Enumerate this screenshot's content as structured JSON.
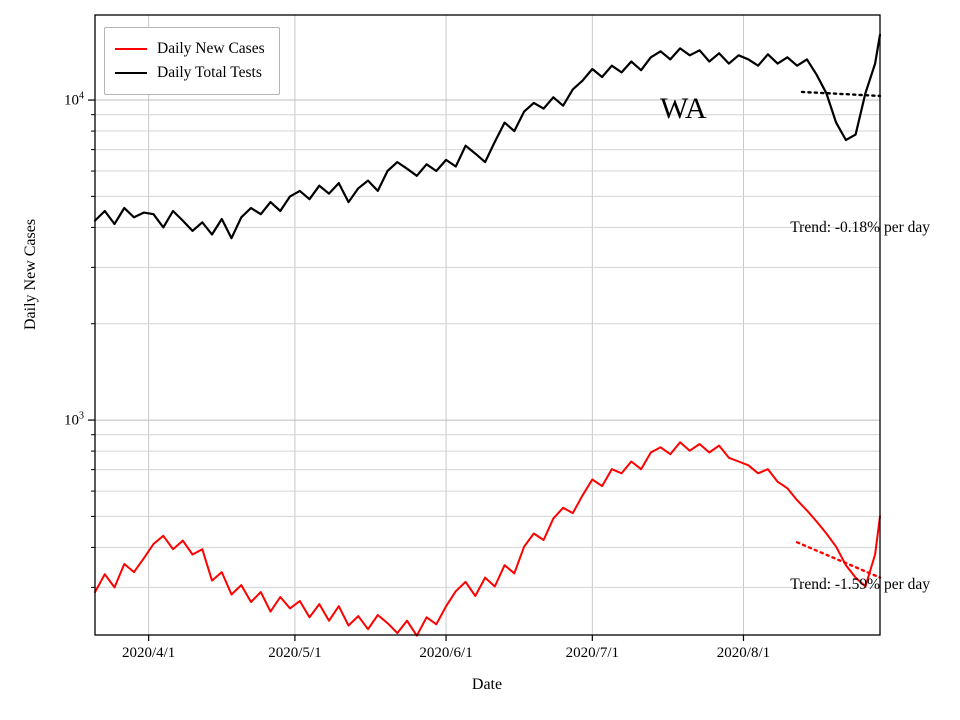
{
  "state_label": "WA",
  "axes": {
    "xlabel": "Date",
    "ylabel": "Daily New Cases"
  },
  "legend": [
    {
      "label": "Daily New Cases",
      "color": "#ff0000"
    },
    {
      "label": "Daily Total Tests",
      "color": "#000000"
    }
  ],
  "annotations": [
    {
      "text": "Trend: -0.18% per day",
      "series": "Daily Total Tests"
    },
    {
      "text": "Trend: -1.59% per day",
      "series": "Daily New Cases"
    }
  ],
  "chart_data": {
    "type": "line",
    "yscale": "log",
    "grid": true,
    "xlim_dates": [
      "2020-03-21",
      "2020-08-29"
    ],
    "ylim": [
      213,
      18440
    ],
    "xticks": [
      {
        "date": "2020-04-01",
        "label": "2020/4/1"
      },
      {
        "date": "2020-05-01",
        "label": "2020/5/1"
      },
      {
        "date": "2020-06-01",
        "label": "2020/6/1"
      },
      {
        "date": "2020-07-01",
        "label": "2020/7/1"
      },
      {
        "date": "2020-08-01",
        "label": "2020/8/1"
      }
    ],
    "yticks_major": [
      {
        "value": 1000,
        "base": 10,
        "exp": 3
      },
      {
        "value": 10000,
        "base": 10,
        "exp": 4
      }
    ],
    "x_dates": [
      "2020-03-21",
      "2020-03-23",
      "2020-03-25",
      "2020-03-27",
      "2020-03-29",
      "2020-03-31",
      "2020-04-02",
      "2020-04-04",
      "2020-04-06",
      "2020-04-08",
      "2020-04-10",
      "2020-04-12",
      "2020-04-14",
      "2020-04-16",
      "2020-04-18",
      "2020-04-20",
      "2020-04-22",
      "2020-04-24",
      "2020-04-26",
      "2020-04-28",
      "2020-04-30",
      "2020-05-02",
      "2020-05-04",
      "2020-05-06",
      "2020-05-08",
      "2020-05-10",
      "2020-05-12",
      "2020-05-14",
      "2020-05-16",
      "2020-05-18",
      "2020-05-20",
      "2020-05-22",
      "2020-05-24",
      "2020-05-26",
      "2020-05-28",
      "2020-05-30",
      "2020-06-01",
      "2020-06-03",
      "2020-06-05",
      "2020-06-07",
      "2020-06-09",
      "2020-06-11",
      "2020-06-13",
      "2020-06-15",
      "2020-06-17",
      "2020-06-19",
      "2020-06-21",
      "2020-06-23",
      "2020-06-25",
      "2020-06-27",
      "2020-06-29",
      "2020-07-01",
      "2020-07-03",
      "2020-07-05",
      "2020-07-07",
      "2020-07-09",
      "2020-07-11",
      "2020-07-13",
      "2020-07-15",
      "2020-07-17",
      "2020-07-19",
      "2020-07-21",
      "2020-07-23",
      "2020-07-25",
      "2020-07-27",
      "2020-07-29",
      "2020-07-31",
      "2020-08-02",
      "2020-08-04",
      "2020-08-06",
      "2020-08-08",
      "2020-08-10",
      "2020-08-12",
      "2020-08-14",
      "2020-08-16",
      "2020-08-18",
      "2020-08-20",
      "2020-08-22",
      "2020-08-24",
      "2020-08-26",
      "2020-08-28",
      "2020-08-29"
    ],
    "series": [
      {
        "name": "Daily New Cases",
        "color": "#ff0000",
        "width": 2,
        "values": [
          290,
          330,
          300,
          355,
          335,
          370,
          410,
          435,
          395,
          420,
          380,
          395,
          315,
          335,
          285,
          305,
          270,
          290,
          252,
          280,
          258,
          272,
          242,
          266,
          236,
          262,
          228,
          244,
          222,
          246,
          232,
          216,
          236,
          212,
          242,
          230,
          262,
          292,
          312,
          282,
          322,
          302,
          352,
          332,
          402,
          442,
          422,
          492,
          532,
          512,
          582,
          652,
          622,
          702,
          682,
          742,
          702,
          792,
          822,
          782,
          852,
          802,
          842,
          792,
          832,
          762,
          742,
          722,
          682,
          702,
          642,
          612,
          562,
          522,
          482,
          442,
          402,
          352,
          322,
          302,
          380,
          500
        ]
      },
      {
        "name": "Daily Total Tests",
        "color": "#000000",
        "width": 2.2,
        "values": [
          4200,
          4500,
          4100,
          4600,
          4300,
          4450,
          4400,
          4000,
          4500,
          4200,
          3900,
          4150,
          3800,
          4250,
          3700,
          4300,
          4600,
          4400,
          4800,
          4500,
          5000,
          5200,
          4900,
          5400,
          5100,
          5500,
          4800,
          5300,
          5600,
          5200,
          6000,
          6400,
          6100,
          5800,
          6300,
          6000,
          6500,
          6200,
          7200,
          6800,
          6400,
          7400,
          8500,
          8000,
          9200,
          9800,
          9400,
          10200,
          9600,
          10800,
          11500,
          12500,
          11800,
          12800,
          12200,
          13200,
          12400,
          13600,
          14200,
          13400,
          14500,
          13800,
          14300,
          13200,
          14000,
          13000,
          13800,
          13400,
          12800,
          13900,
          13000,
          13600,
          12800,
          13400,
          12000,
          10500,
          8500,
          7500,
          7800,
          10500,
          13000,
          16000
        ]
      }
    ],
    "trends": [
      {
        "name": "tests-trend",
        "color": "#000000",
        "rate_label": "-0.18% per day",
        "start_date": "2020-08-13",
        "end_date": "2020-08-29",
        "start_value": 10600,
        "end_value": 10300
      },
      {
        "name": "cases-trend",
        "color": "#ff0000",
        "rate_label": "-1.59% per day",
        "start_date": "2020-08-12",
        "end_date": "2020-08-29",
        "start_value": 415,
        "end_value": 322
      }
    ]
  }
}
